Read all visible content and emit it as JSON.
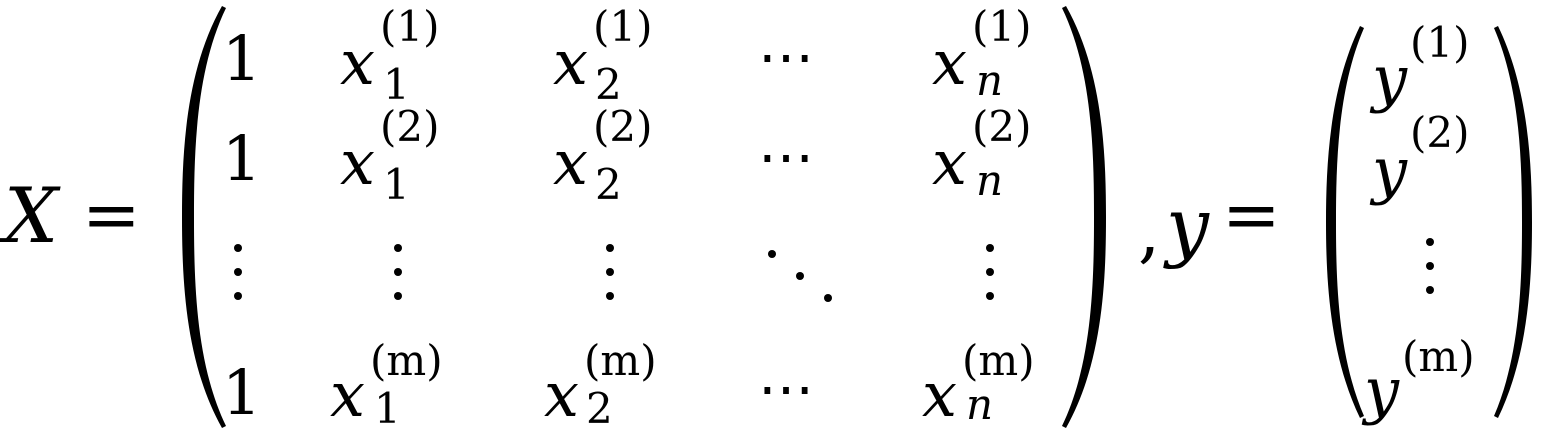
{
  "equation": {
    "lhs_x": "X",
    "equals_1": "=",
    "comma": ",",
    "lhs_y": "y",
    "equals_2": "=",
    "matrix_x": {
      "rows": [
        {
          "c0": "1",
          "c1_base": "x",
          "c1_sub": "1",
          "c1_sup": "(1)",
          "c2_base": "x",
          "c2_sub": "2",
          "c2_sup": "(1)",
          "c3": "⋯",
          "c4_base": "x",
          "c4_sub": "n",
          "c4_sup": "(1)"
        },
        {
          "c0": "1",
          "c1_base": "x",
          "c1_sub": "1",
          "c1_sup": "(2)",
          "c2_base": "x",
          "c2_sub": "2",
          "c2_sup": "(2)",
          "c3": "⋯",
          "c4_base": "x",
          "c4_sub": "n",
          "c4_sup": "(2)"
        },
        {
          "c0": "1",
          "c1_base": "x",
          "c1_sub": "1",
          "c1_sup": "(m)",
          "c2_base": "x",
          "c2_sub": "2",
          "c2_sup": "(m)",
          "c3": "⋯",
          "c4_base": "x",
          "c4_sub": "n",
          "c4_sup": "(m)"
        }
      ]
    },
    "vector_y": {
      "rows": [
        {
          "base": "y",
          "sup": "(1)"
        },
        {
          "base": "y",
          "sup": "(2)"
        },
        {
          "base": "y",
          "sup": "(m)"
        }
      ]
    }
  }
}
